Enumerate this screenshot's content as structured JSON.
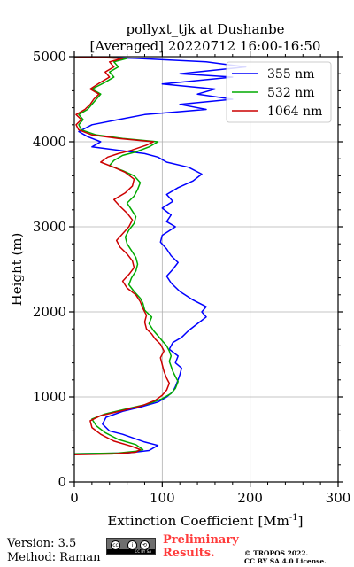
{
  "title_line1": "pollyxt_tjk at Dushanbe",
  "title_line2": "[Averaged] 20220712 16:00-16:50",
  "footer": {
    "version": "Version: 3.5",
    "method": "Method: Raman",
    "preliminary_line1": "Preliminary",
    "preliminary_line2": "Results.",
    "copyright_line1": "© TROPOS 2022.",
    "copyright_line2": "CC BY SA 4.0 License.",
    "license_badge": "CC BY SA"
  },
  "chart_data": {
    "type": "line",
    "title": "pollyxt_tjk at Dushanbe [Averaged] 20220712 16:00-16:50",
    "xlabel": "Extinction Coefficient [Mm",
    "xlabel_sup": "-1",
    "xlabel_end": "]",
    "ylabel": "Height (m)",
    "xlim": [
      0,
      300
    ],
    "ylim": [
      0,
      5000
    ],
    "xticks": [
      0,
      100,
      200,
      300
    ],
    "yticks": [
      0,
      1000,
      2000,
      3000,
      4000,
      5000
    ],
    "grid": true,
    "legend_position": "top-right",
    "series": [
      {
        "name": "355 nm",
        "color": "#0000ff",
        "points": [
          [
            0,
            330
          ],
          [
            60,
            340
          ],
          [
            85,
            370
          ],
          [
            95,
            430
          ],
          [
            80,
            470
          ],
          [
            55,
            560
          ],
          [
            40,
            600
          ],
          [
            32,
            680
          ],
          [
            36,
            760
          ],
          [
            55,
            830
          ],
          [
            75,
            880
          ],
          [
            95,
            940
          ],
          [
            105,
            1000
          ],
          [
            112,
            1060
          ],
          [
            115,
            1120
          ],
          [
            118,
            1200
          ],
          [
            120,
            1260
          ],
          [
            122,
            1340
          ],
          [
            115,
            1400
          ],
          [
            118,
            1480
          ],
          [
            108,
            1560
          ],
          [
            112,
            1640
          ],
          [
            122,
            1700
          ],
          [
            130,
            1780
          ],
          [
            140,
            1860
          ],
          [
            150,
            1940
          ],
          [
            145,
            2000
          ],
          [
            150,
            2060
          ],
          [
            135,
            2140
          ],
          [
            120,
            2240
          ],
          [
            110,
            2340
          ],
          [
            105,
            2420
          ],
          [
            112,
            2500
          ],
          [
            118,
            2580
          ],
          [
            110,
            2660
          ],
          [
            105,
            2740
          ],
          [
            98,
            2820
          ],
          [
            100,
            2900
          ],
          [
            115,
            3000
          ],
          [
            105,
            3060
          ],
          [
            110,
            3140
          ],
          [
            100,
            3220
          ],
          [
            112,
            3300
          ],
          [
            105,
            3380
          ],
          [
            118,
            3460
          ],
          [
            135,
            3540
          ],
          [
            145,
            3620
          ],
          [
            130,
            3700
          ],
          [
            105,
            3760
          ],
          [
            95,
            3820
          ],
          [
            80,
            3860
          ],
          [
            50,
            3900
          ],
          [
            20,
            3940
          ],
          [
            30,
            4000
          ],
          [
            15,
            4060
          ],
          [
            5,
            4120
          ],
          [
            20,
            4200
          ],
          [
            50,
            4260
          ],
          [
            80,
            4320
          ],
          [
            150,
            4380
          ],
          [
            120,
            4440
          ],
          [
            180,
            4500
          ],
          [
            140,
            4560
          ],
          [
            160,
            4620
          ],
          [
            100,
            4680
          ],
          [
            180,
            4760
          ],
          [
            120,
            4800
          ],
          [
            195,
            4880
          ],
          [
            150,
            4940
          ],
          [
            70,
            4980
          ],
          [
            0,
            5000
          ]
        ]
      },
      {
        "name": "532 nm",
        "color": "#00aa00",
        "points": [
          [
            0,
            330
          ],
          [
            50,
            340
          ],
          [
            70,
            360
          ],
          [
            78,
            380
          ],
          [
            70,
            440
          ],
          [
            50,
            500
          ],
          [
            35,
            580
          ],
          [
            25,
            660
          ],
          [
            20,
            740
          ],
          [
            35,
            800
          ],
          [
            60,
            860
          ],
          [
            85,
            920
          ],
          [
            100,
            980
          ],
          [
            110,
            1040
          ],
          [
            115,
            1100
          ],
          [
            118,
            1180
          ],
          [
            115,
            1240
          ],
          [
            112,
            1300
          ],
          [
            110,
            1360
          ],
          [
            108,
            1420
          ],
          [
            110,
            1480
          ],
          [
            108,
            1540
          ],
          [
            105,
            1600
          ],
          [
            100,
            1660
          ],
          [
            95,
            1720
          ],
          [
            90,
            1780
          ],
          [
            85,
            1860
          ],
          [
            88,
            1940
          ],
          [
            80,
            2020
          ],
          [
            78,
            2100
          ],
          [
            75,
            2160
          ],
          [
            68,
            2240
          ],
          [
            62,
            2320
          ],
          [
            65,
            2400
          ],
          [
            70,
            2480
          ],
          [
            72,
            2560
          ],
          [
            70,
            2640
          ],
          [
            65,
            2720
          ],
          [
            60,
            2800
          ],
          [
            58,
            2880
          ],
          [
            62,
            2960
          ],
          [
            68,
            3040
          ],
          [
            70,
            3120
          ],
          [
            65,
            3200
          ],
          [
            60,
            3280
          ],
          [
            68,
            3360
          ],
          [
            72,
            3440
          ],
          [
            75,
            3520
          ],
          [
            68,
            3600
          ],
          [
            55,
            3660
          ],
          [
            40,
            3720
          ],
          [
            45,
            3780
          ],
          [
            55,
            3840
          ],
          [
            70,
            3880
          ],
          [
            85,
            3940
          ],
          [
            95,
            4000
          ],
          [
            55,
            4040
          ],
          [
            25,
            4080
          ],
          [
            8,
            4140
          ],
          [
            5,
            4200
          ],
          [
            10,
            4260
          ],
          [
            5,
            4320
          ],
          [
            15,
            4380
          ],
          [
            20,
            4440
          ],
          [
            25,
            4500
          ],
          [
            30,
            4560
          ],
          [
            20,
            4620
          ],
          [
            35,
            4700
          ],
          [
            45,
            4760
          ],
          [
            40,
            4820
          ],
          [
            50,
            4880
          ],
          [
            45,
            4940
          ],
          [
            60,
            4980
          ],
          [
            0,
            5000
          ]
        ]
      },
      {
        "name": "1064 nm",
        "color": "#cc0000",
        "points": [
          [
            0,
            320
          ],
          [
            45,
            330
          ],
          [
            70,
            350
          ],
          [
            75,
            380
          ],
          [
            65,
            420
          ],
          [
            45,
            480
          ],
          [
            30,
            560
          ],
          [
            20,
            640
          ],
          [
            18,
            720
          ],
          [
            30,
            780
          ],
          [
            55,
            840
          ],
          [
            78,
            900
          ],
          [
            92,
            960
          ],
          [
            100,
            1020
          ],
          [
            105,
            1080
          ],
          [
            108,
            1160
          ],
          [
            105,
            1220
          ],
          [
            102,
            1300
          ],
          [
            100,
            1380
          ],
          [
            98,
            1460
          ],
          [
            102,
            1540
          ],
          [
            98,
            1620
          ],
          [
            92,
            1680
          ],
          [
            88,
            1740
          ],
          [
            82,
            1800
          ],
          [
            80,
            1880
          ],
          [
            82,
            1960
          ],
          [
            78,
            2040
          ],
          [
            75,
            2120
          ],
          [
            70,
            2200
          ],
          [
            60,
            2280
          ],
          [
            55,
            2360
          ],
          [
            62,
            2440
          ],
          [
            68,
            2520
          ],
          [
            66,
            2600
          ],
          [
            60,
            2680
          ],
          [
            52,
            2760
          ],
          [
            48,
            2840
          ],
          [
            55,
            2920
          ],
          [
            62,
            3000
          ],
          [
            66,
            3080
          ],
          [
            60,
            3160
          ],
          [
            52,
            3240
          ],
          [
            45,
            3320
          ],
          [
            58,
            3400
          ],
          [
            66,
            3480
          ],
          [
            68,
            3560
          ],
          [
            58,
            3640
          ],
          [
            45,
            3700
          ],
          [
            30,
            3760
          ],
          [
            38,
            3820
          ],
          [
            50,
            3860
          ],
          [
            65,
            3900
          ],
          [
            82,
            3960
          ],
          [
            90,
            4000
          ],
          [
            50,
            4040
          ],
          [
            20,
            4080
          ],
          [
            5,
            4140
          ],
          [
            2,
            4200
          ],
          [
            8,
            4260
          ],
          [
            2,
            4320
          ],
          [
            12,
            4380
          ],
          [
            18,
            4440
          ],
          [
            22,
            4500
          ],
          [
            28,
            4560
          ],
          [
            18,
            4620
          ],
          [
            30,
            4700
          ],
          [
            40,
            4760
          ],
          [
            35,
            4820
          ],
          [
            45,
            4880
          ],
          [
            40,
            4940
          ],
          [
            55,
            4980
          ],
          [
            0,
            5000
          ]
        ]
      }
    ]
  }
}
